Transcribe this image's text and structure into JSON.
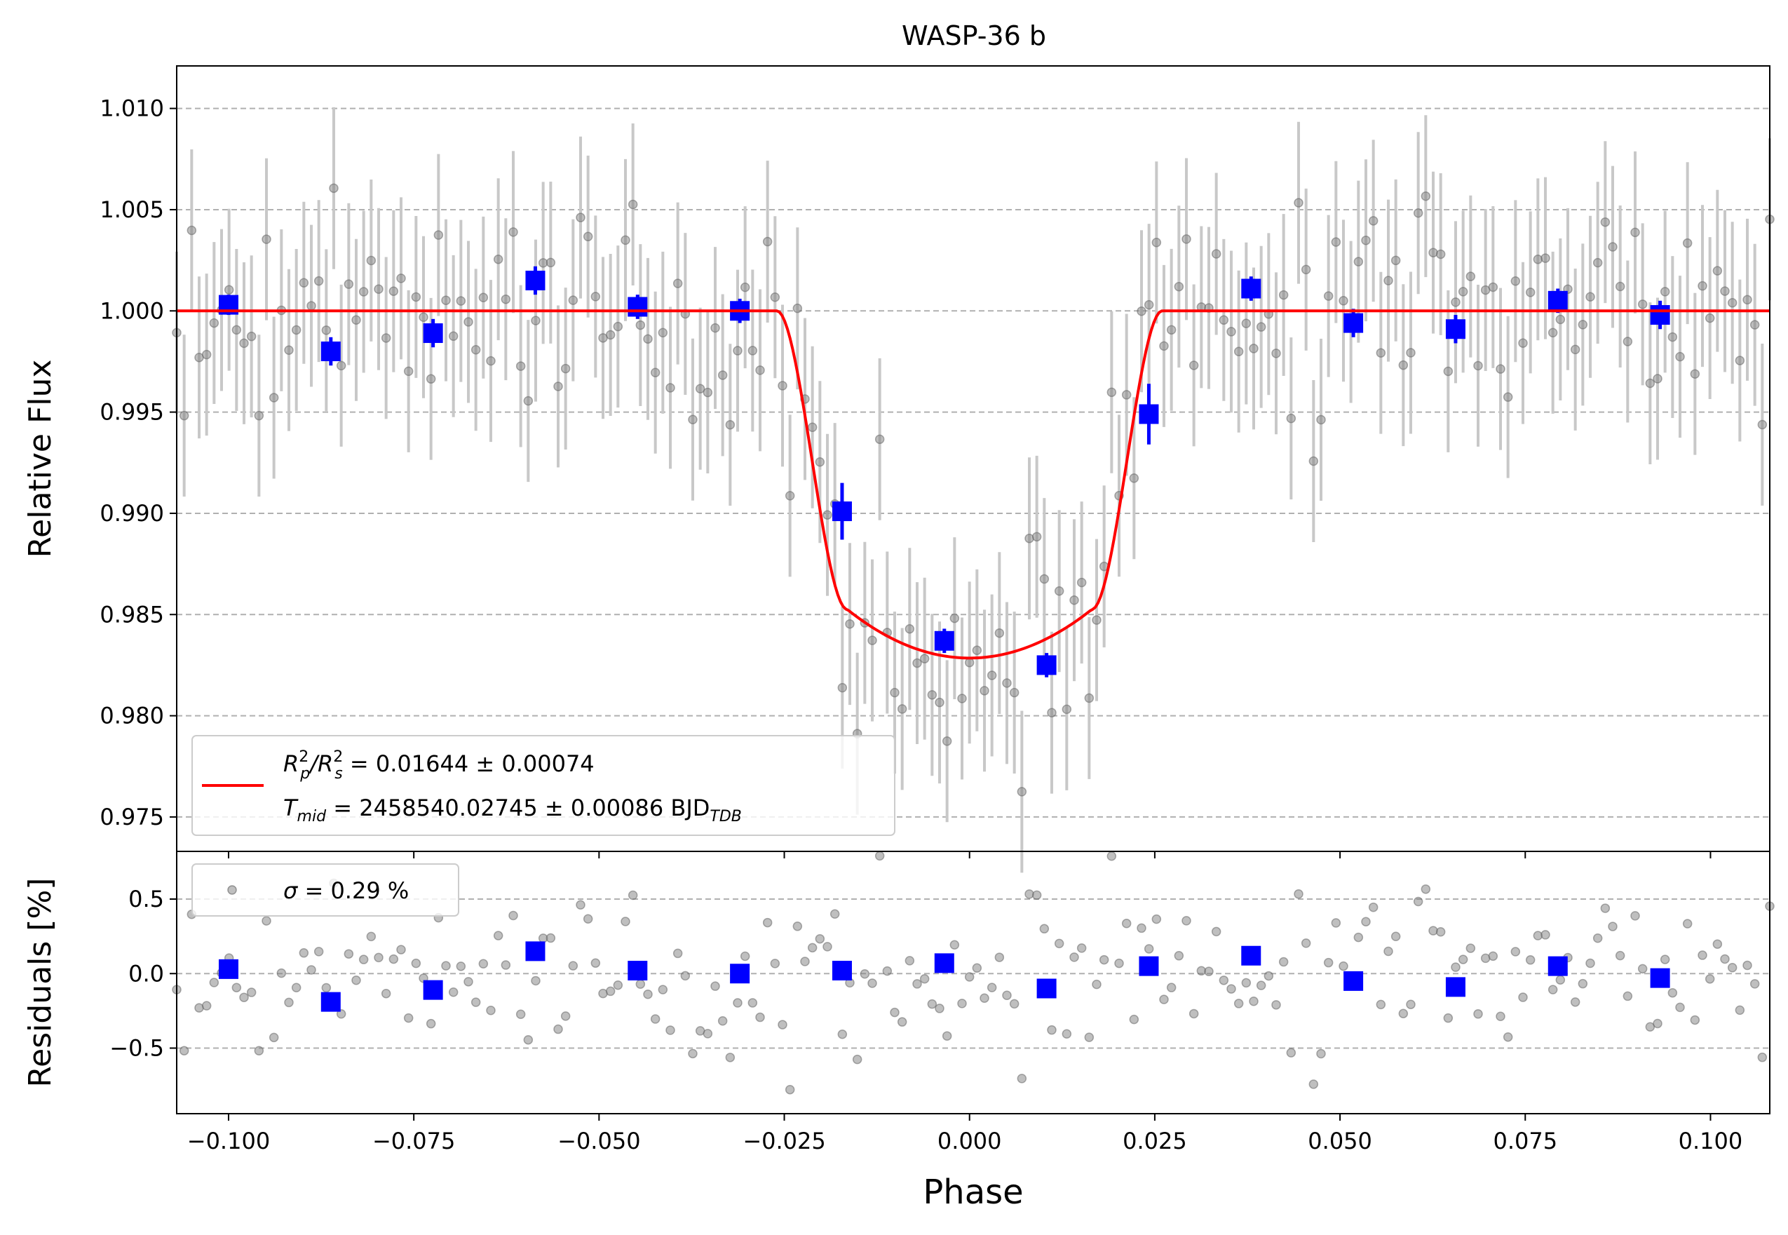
{
  "chart_data": [
    {
      "type": "scatter",
      "panel": "main",
      "title": "WASP-36 b",
      "xlabel": "Phase",
      "ylabel": "Relative Flux",
      "xlim": [
        -0.107,
        0.108
      ],
      "ylim": [
        0.9733,
        1.0121
      ],
      "grid": "horizontal-dashed",
      "xticks": [
        -0.1,
        -0.075,
        -0.05,
        -0.025,
        0.0,
        0.025,
        0.05,
        0.075,
        0.1
      ],
      "yticks": [
        0.975,
        0.98,
        0.985,
        0.99,
        0.995,
        1.0,
        1.005,
        1.01
      ],
      "ytick_labels": [
        "0.975",
        "0.980",
        "0.985",
        "0.990",
        "0.995",
        "1.000",
        "1.005",
        "1.010"
      ],
      "legend": {
        "placement": "lower-left",
        "model_line_1": {
          "pre": "R",
          "sub1": "p",
          "sup1": "2",
          "mid": "/R",
          "sub2": "s",
          "sup2": "2",
          "rest": " = 0.01644 ± 0.00074"
        },
        "model_line_2": {
          "pre": "T",
          "sub": "mid",
          "rest": " = 2458540.02745 ± 0.00086 BJD",
          "sub2": "TDB"
        }
      },
      "model": {
        "name": "transit model",
        "color": "#ff0000",
        "depth": 0.01644,
        "min_flux": 0.98285,
        "phase_ingress_start": -0.026,
        "phase_ingress_end": -0.0165,
        "phase_egress_start": 0.0165,
        "phase_egress_end": 0.026
      },
      "binned": {
        "name": "binned data",
        "color": "#0000ff",
        "x": [
          -0.1,
          -0.0862,
          -0.0724,
          -0.0586,
          -0.0448,
          -0.031,
          -0.0172,
          -0.0034,
          0.0104,
          0.0242,
          0.038,
          0.0518,
          0.0656,
          0.0794,
          0.0932
        ],
        "y": [
          1.0003,
          0.998,
          0.9989,
          1.0015,
          1.0002,
          1.0,
          0.9901,
          0.9837,
          0.9825,
          0.9949,
          1.0011,
          0.9994,
          0.9991,
          1.0005,
          0.9998
        ],
        "yerr": [
          0.0005,
          0.0007,
          0.0007,
          0.0007,
          0.0006,
          0.0006,
          0.0014,
          0.0006,
          0.0006,
          0.0015,
          0.0006,
          0.0007,
          0.0007,
          0.0006,
          0.0007
        ]
      },
      "raw": {
        "name": "unbinned data",
        "color": "#808080",
        "n_points": 214,
        "x_start": -0.107,
        "x_end": 0.108,
        "scatter_std": 0.0029,
        "error_bar": 0.004,
        "seed": 36
      }
    },
    {
      "type": "scatter",
      "panel": "residuals",
      "xlabel": "Phase",
      "ylabel": "Residuals [%]",
      "xlim": [
        -0.107,
        0.108
      ],
      "ylim": [
        -0.94,
        0.82
      ],
      "grid": "horizontal-dashed",
      "yticks": [
        -0.5,
        0.0,
        0.5
      ],
      "ytick_labels": [
        "−0.5",
        "0.0",
        "0.5"
      ],
      "xtick_labels": [
        "−0.100",
        "−0.075",
        "−0.050",
        "−0.025",
        "0.000",
        "0.025",
        "0.050",
        "0.075",
        "0.100"
      ],
      "legend": {
        "placement": "upper-left",
        "label_symbol": "σ",
        "label_rest": " = 0.29 %"
      },
      "binned": {
        "x": [
          -0.1,
          -0.0862,
          -0.0724,
          -0.0586,
          -0.0448,
          -0.031,
          -0.0172,
          -0.0034,
          0.0104,
          0.0242,
          0.038,
          0.0518,
          0.0656,
          0.0794,
          0.0932
        ],
        "y": [
          0.03,
          -0.19,
          -0.11,
          0.15,
          0.02,
          0.0,
          0.02,
          0.07,
          -0.1,
          0.05,
          0.12,
          -0.05,
          -0.09,
          0.05,
          -0.03
        ]
      },
      "raw": {
        "sigma_percent": 0.29
      }
    }
  ]
}
